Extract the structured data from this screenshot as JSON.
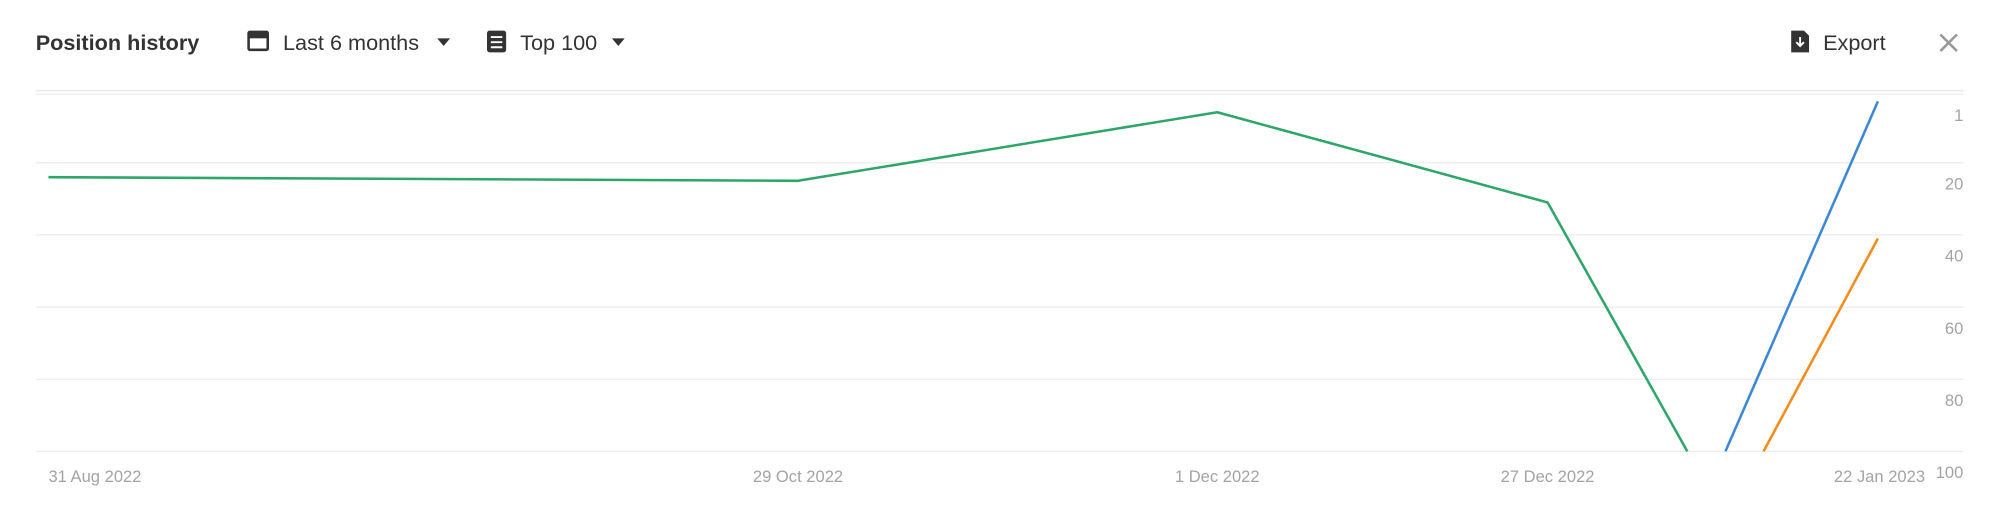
{
  "header": {
    "title": "Position history",
    "period": "Last 6 months",
    "scope": "Top 100",
    "export": "Export"
  },
  "chart_data": {
    "type": "line",
    "xticks": [
      {
        "value": "2022-08-31",
        "label": "31 Aug 2022"
      },
      {
        "value": "2022-10-29",
        "label": "29 Oct 2022"
      },
      {
        "value": "2022-12-01",
        "label": "1 Dec 2022"
      },
      {
        "value": "2022-12-27",
        "label": "27 Dec 2022"
      },
      {
        "value": "2023-01-22",
        "label": "22 Jan 2023"
      }
    ],
    "xlim": [
      "2022-08-31",
      "2023-01-22"
    ],
    "ylim": [
      0,
      100
    ],
    "y_inverted": true,
    "yticks": [
      1,
      20,
      40,
      60,
      80,
      100
    ],
    "grid": true,
    "series": [
      {
        "color": "#2ea66a",
        "x": [
          "2022-08-31",
          "2022-10-29",
          "2022-12-01",
          "2022-12-27",
          "2023-01-07"
        ],
        "values": [
          24,
          25,
          6,
          31,
          100
        ]
      },
      {
        "color": "#3b88d6",
        "x": [
          "2023-01-10",
          "2023-01-22"
        ],
        "values": [
          100,
          3
        ]
      },
      {
        "color": "#f28c1c",
        "x": [
          "2023-01-13",
          "2023-01-22"
        ],
        "values": [
          100,
          41
        ]
      }
    ]
  }
}
